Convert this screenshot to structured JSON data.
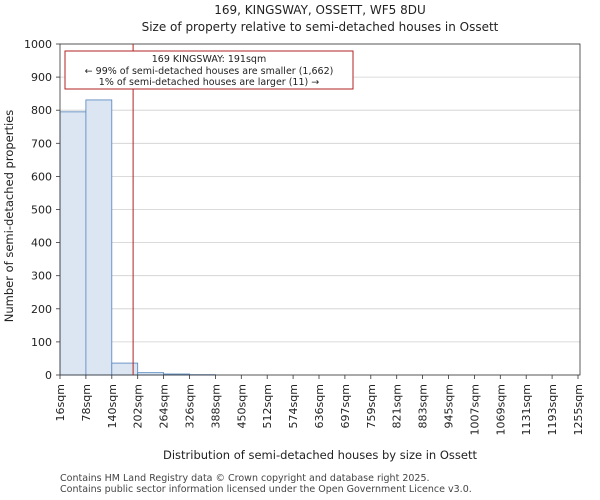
{
  "chart_data": {
    "type": "bar",
    "title": "169, KINGSWAY, OSSETT, WF5 8DU",
    "subtitle": "Size of property relative to semi-detached houses in Ossett",
    "xlabel": "Distribution of semi-detached houses by size in Ossett",
    "ylabel": "Number of semi-detached properties",
    "ylim": [
      0,
      1000
    ],
    "yticks": [
      0,
      100,
      200,
      300,
      400,
      500,
      600,
      700,
      800,
      900,
      1000
    ],
    "categories": [
      "16sqm",
      "78sqm",
      "140sqm",
      "202sqm",
      "264sqm",
      "326sqm",
      "388sqm",
      "450sqm",
      "512sqm",
      "574sqm",
      "636sqm",
      "697sqm",
      "759sqm",
      "821sqm",
      "883sqm",
      "945sqm",
      "1007sqm",
      "1069sqm",
      "1131sqm",
      "1193sqm",
      "1255sqm"
    ],
    "values": [
      795,
      831,
      36,
      7,
      3,
      1,
      0,
      0,
      0,
      0,
      0,
      0,
      0,
      0,
      0,
      0,
      0,
      0,
      0,
      0,
      0
    ],
    "property_size": 191,
    "property_bin_index": 2,
    "annotation": {
      "line1": "169 KINGSWAY: 191sqm",
      "line2": "← 99% of semi-detached houses are smaller (1,662)",
      "line3": "1% of semi-detached houses are larger (11) →"
    },
    "colors": {
      "bar_fill": "#dce6f2",
      "bar_edge": "#4f81bd",
      "marker": "#b22222",
      "grid": "#cfcfcf"
    }
  },
  "footer": {
    "line1": "Contains HM Land Registry data © Crown copyright and database right 2025.",
    "line2": "Contains public sector information licensed under the Open Government Licence v3.0."
  }
}
